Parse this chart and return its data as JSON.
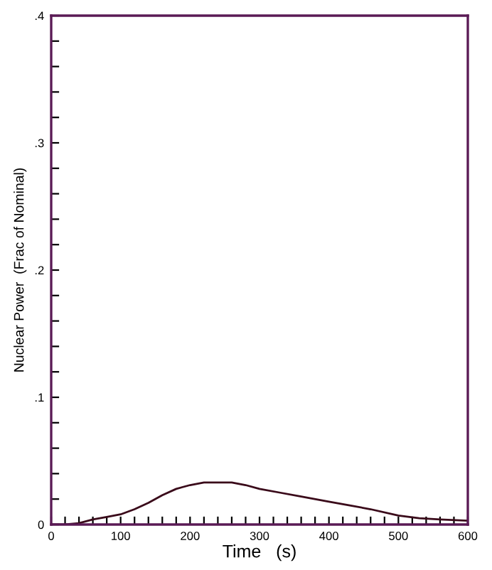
{
  "chart_data": {
    "type": "line",
    "xlabel": "Time   (s)",
    "ylabel": "Nuclear Power  (Frac of Nominal)",
    "x": [
      0,
      20,
      40,
      60,
      80,
      100,
      120,
      140,
      160,
      180,
      200,
      220,
      240,
      260,
      280,
      300,
      330,
      360,
      400,
      430,
      460,
      500,
      530,
      560,
      600
    ],
    "series": [
      {
        "color": "#3a0a1a",
        "values": [
          0,
          0,
          0.001,
          0.004,
          0.006,
          0.008,
          0.012,
          0.017,
          0.023,
          0.028,
          0.031,
          0.033,
          0.033,
          0.033,
          0.031,
          0.028,
          0.025,
          0.022,
          0.018,
          0.015,
          0.012,
          0.007,
          0.005,
          0.004,
          0.003
        ]
      }
    ],
    "xlim": [
      0,
      600
    ],
    "ylim": [
      0,
      0.4
    ],
    "xticks": [
      0,
      {
        "value": 20,
        "label": null
      },
      {
        "value": 40,
        "label": null
      },
      {
        "value": 60,
        "label": null
      },
      {
        "value": 80,
        "label": null
      },
      100,
      {
        "value": 120,
        "label": null
      },
      {
        "value": 140,
        "label": null
      },
      {
        "value": 160,
        "label": null
      },
      {
        "value": 180,
        "label": null
      },
      200,
      {
        "value": 220,
        "label": null
      },
      {
        "value": 240,
        "label": null
      },
      {
        "value": 260,
        "label": null
      },
      {
        "value": 280,
        "label": null
      },
      300,
      {
        "value": 320,
        "label": null
      },
      {
        "value": 340,
        "label": null
      },
      {
        "value": 360,
        "label": null
      },
      {
        "value": 380,
        "label": null
      },
      400,
      {
        "value": 420,
        "label": null
      },
      {
        "value": 440,
        "label": null
      },
      {
        "value": 460,
        "label": null
      },
      {
        "value": 480,
        "label": null
      },
      500,
      {
        "value": 520,
        "label": null
      },
      {
        "value": 540,
        "label": null
      },
      {
        "value": 560,
        "label": null
      },
      {
        "value": 580,
        "label": null
      },
      600
    ],
    "yticks": [
      {
        "value": 0,
        "label": "0"
      },
      {
        "value": 0.02,
        "label": null
      },
      {
        "value": 0.04,
        "label": null
      },
      {
        "value": 0.06,
        "label": null
      },
      {
        "value": 0.08,
        "label": null
      },
      {
        "value": 0.1,
        "label": ".1"
      },
      {
        "value": 0.12,
        "label": null
      },
      {
        "value": 0.14,
        "label": null
      },
      {
        "value": 0.16,
        "label": null
      },
      {
        "value": 0.18,
        "label": null
      },
      {
        "value": 0.2,
        "label": ".2"
      },
      {
        "value": 0.22,
        "label": null
      },
      {
        "value": 0.24,
        "label": null
      },
      {
        "value": 0.26,
        "label": null
      },
      {
        "value": 0.28,
        "label": null
      },
      {
        "value": 0.3,
        "label": ".3"
      },
      {
        "value": 0.32,
        "label": null
      },
      {
        "value": 0.34,
        "label": null
      },
      {
        "value": 0.36,
        "label": null
      },
      {
        "value": 0.38,
        "label": null
      },
      {
        "value": 0.4,
        "label": ".4"
      }
    ],
    "grid": false,
    "marker": "none",
    "line_style": "solid"
  }
}
